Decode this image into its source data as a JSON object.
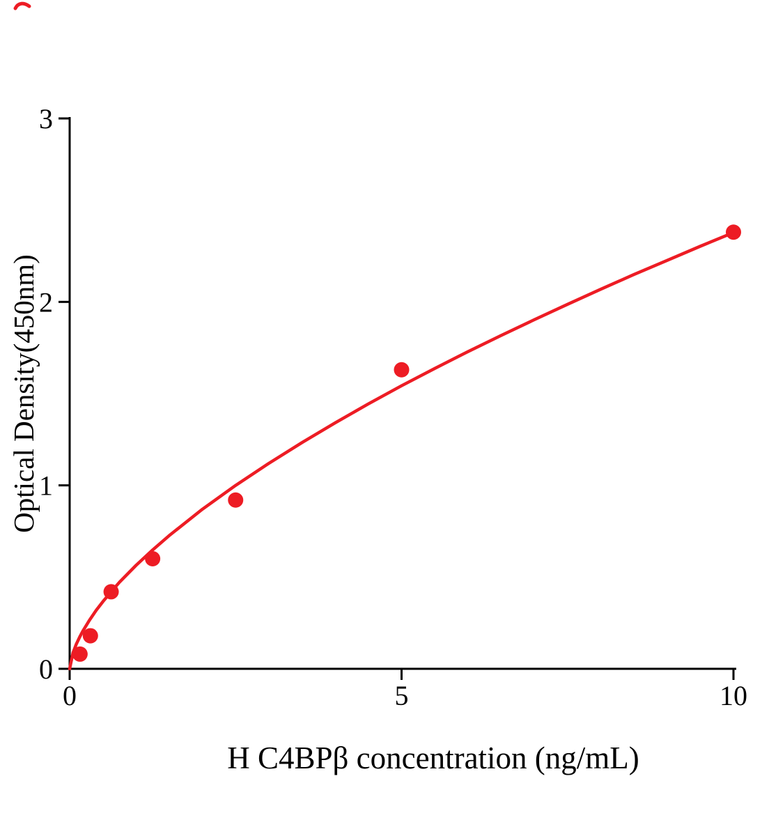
{
  "page": {
    "background": "#ffffff"
  },
  "chart_data": {
    "type": "scatter",
    "title": "",
    "xlabel": "H C4BPβ concentration (ng/mL)",
    "ylabel": "Optical Density(450nm)",
    "xlim": [
      0,
      10
    ],
    "ylim": [
      0,
      3
    ],
    "grid": false,
    "legend": "none",
    "axis_color": "#000000",
    "point_color": "#ed1c24",
    "curve_color": "#ed1c24",
    "x_ticks": [
      {
        "value": 0,
        "label": "0"
      },
      {
        "value": 5,
        "label": "5"
      },
      {
        "value": 10,
        "label": "10"
      }
    ],
    "y_ticks": [
      {
        "value": 0,
        "label": "0"
      },
      {
        "value": 1,
        "label": "1"
      },
      {
        "value": 2,
        "label": "2"
      },
      {
        "value": 3,
        "label": "3"
      }
    ],
    "points": [
      {
        "x": 0.156,
        "y": 0.08
      },
      {
        "x": 0.3125,
        "y": 0.18
      },
      {
        "x": 0.625,
        "y": 0.42
      },
      {
        "x": 1.25,
        "y": 0.6
      },
      {
        "x": 2.5,
        "y": 0.92
      },
      {
        "x": 5,
        "y": 1.63
      },
      {
        "x": 10,
        "y": 2.38
      }
    ],
    "curve_fit": {
      "model": "power",
      "equation": "y = 0.564 * x^0.625"
    },
    "curve_samples": [
      [
        0,
        0
      ],
      [
        0.05,
        0.087
      ],
      [
        0.1,
        0.134
      ],
      [
        0.156,
        0.177
      ],
      [
        0.2,
        0.207
      ],
      [
        0.3,
        0.266
      ],
      [
        0.4,
        0.319
      ],
      [
        0.5,
        0.366
      ],
      [
        0.625,
        0.42
      ],
      [
        0.75,
        0.472
      ],
      [
        1.0,
        0.564
      ],
      [
        1.25,
        0.648
      ],
      [
        1.5,
        0.726
      ],
      [
        2.0,
        0.87
      ],
      [
        2.5,
        1.0
      ],
      [
        3.0,
        1.12
      ],
      [
        3.5,
        1.233
      ],
      [
        4.0,
        1.341
      ],
      [
        4.5,
        1.444
      ],
      [
        5.0,
        1.543
      ],
      [
        5.5,
        1.637
      ],
      [
        6.0,
        1.729
      ],
      [
        6.5,
        1.817
      ],
      [
        7.0,
        1.903
      ],
      [
        7.5,
        1.987
      ],
      [
        8.0,
        2.069
      ],
      [
        8.5,
        2.149
      ],
      [
        9.0,
        2.226
      ],
      [
        9.5,
        2.303
      ],
      [
        10.0,
        2.378
      ]
    ]
  }
}
